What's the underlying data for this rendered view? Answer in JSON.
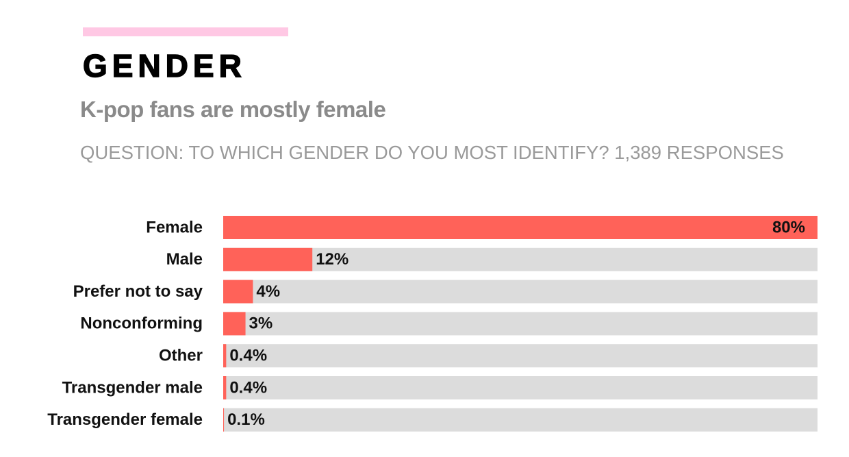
{
  "chart_data": {
    "type": "bar",
    "orientation": "horizontal",
    "title": "GENDER",
    "subtitle": "K-pop fans are mostly female",
    "note": "QUESTION: TO WHICH GENDER DO YOU MOST IDENTIFY? 1,389 RESPONSES",
    "categories": [
      "Female",
      "Male",
      "Prefer not to say",
      "Nonconforming",
      "Other",
      "Transgender male",
      "Transgender female"
    ],
    "values": [
      80,
      12,
      4,
      3,
      0.4,
      0.4,
      0.1
    ],
    "value_labels": [
      "80%",
      "12%",
      "4%",
      "3%",
      "0.4%",
      "0.4%",
      "0.1%"
    ],
    "color": "#ff6259",
    "track_color": "#dcdcdc",
    "xlim": [
      0,
      80
    ]
  }
}
